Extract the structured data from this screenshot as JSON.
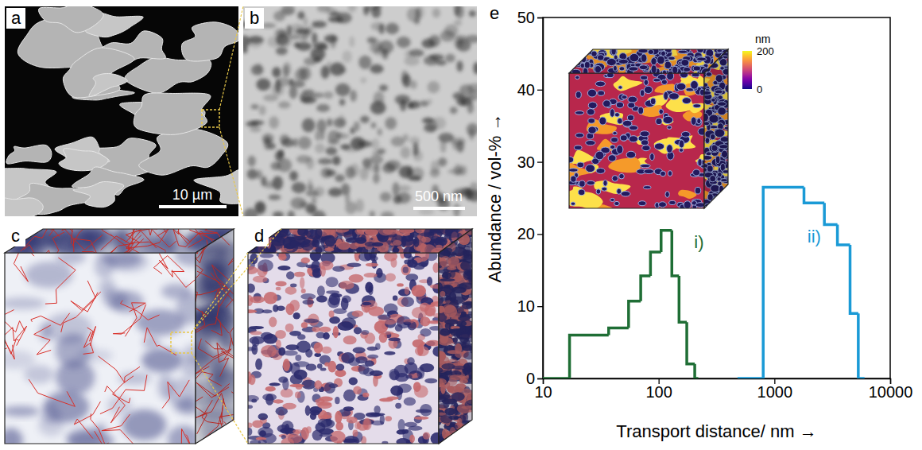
{
  "panels": [
    {
      "letter": "a",
      "scale_bar": "10 µm"
    },
    {
      "letter": "b",
      "scale_bar": "500 nm"
    },
    {
      "letter": "c"
    },
    {
      "letter": "d"
    }
  ],
  "chart_data": {
    "type": "histogram",
    "panel_label": "e",
    "x_label": "Transport distance/ nm →",
    "y_label": "Abundance / vol-% →",
    "log": "x",
    "line_style": "step",
    "xlim": [
      10,
      10000
    ],
    "xticks": [
      10,
      100,
      1000,
      10000
    ],
    "ylim": [
      0,
      50
    ],
    "yticks": [
      0,
      10,
      20,
      30,
      40,
      50
    ],
    "series": [
      {
        "name": "i)",
        "color": "#1f6e35",
        "bins": [
          10,
          17,
          37,
          55,
          70,
          85,
          105,
          130,
          150,
          175,
          205,
          220
        ],
        "values": [
          0,
          6,
          7,
          10.7,
          14.2,
          17.5,
          20.5,
          14.2,
          7.8,
          2,
          0
        ]
      },
      {
        "name": "ii)",
        "color": "#1a9ad6",
        "bins": [
          480,
          800,
          1800,
          2700,
          3500,
          4500,
          5300,
          6000
        ],
        "values": [
          0,
          26.5,
          24.3,
          21.3,
          18.5,
          9,
          0
        ]
      }
    ],
    "colorbar": {
      "label": "nm",
      "range": [
        0,
        200
      ],
      "ticks": [
        0,
        200
      ]
    }
  }
}
